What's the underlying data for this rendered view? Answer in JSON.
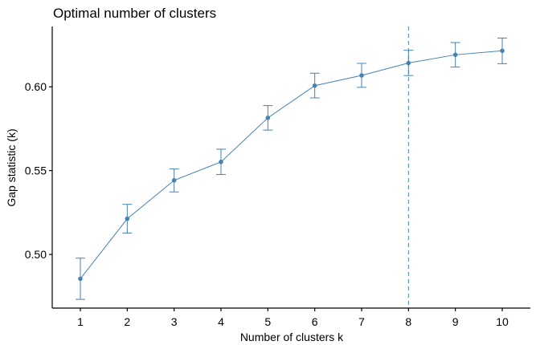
{
  "chart_data": {
    "type": "line",
    "title": "Optimal number of clusters",
    "xlabel": "Number of clusters k",
    "ylabel": "Gap statistic (k)",
    "x": [
      1,
      2,
      3,
      4,
      5,
      6,
      7,
      8,
      9,
      10
    ],
    "x_tick_labels": [
      "1",
      "2",
      "3",
      "4",
      "5",
      "6",
      "7",
      "8",
      "9",
      "10"
    ],
    "y_ticks": [
      0.5,
      0.55,
      0.6
    ],
    "y_tick_labels": [
      "0.50",
      "0.55",
      "0.60"
    ],
    "ylim": [
      0.468,
      0.636
    ],
    "xlim": [
      0.4,
      10.6
    ],
    "series": [
      {
        "values": [
          0.4855,
          0.5213,
          0.5442,
          0.5552,
          0.5815,
          0.6007,
          0.6068,
          0.6142,
          0.6191,
          0.6215
        ],
        "error_low": [
          0.4732,
          0.5128,
          0.5373,
          0.5477,
          0.5742,
          0.5934,
          0.5997,
          0.6067,
          0.6118,
          0.6138
        ],
        "error_high": [
          0.4978,
          0.5299,
          0.551,
          0.5628,
          0.5888,
          0.6081,
          0.614,
          0.6218,
          0.6264,
          0.6291
        ]
      }
    ],
    "vline_x": 8,
    "grid": false,
    "colors": {
      "series": "#4682b4",
      "axis": "#000000"
    }
  }
}
